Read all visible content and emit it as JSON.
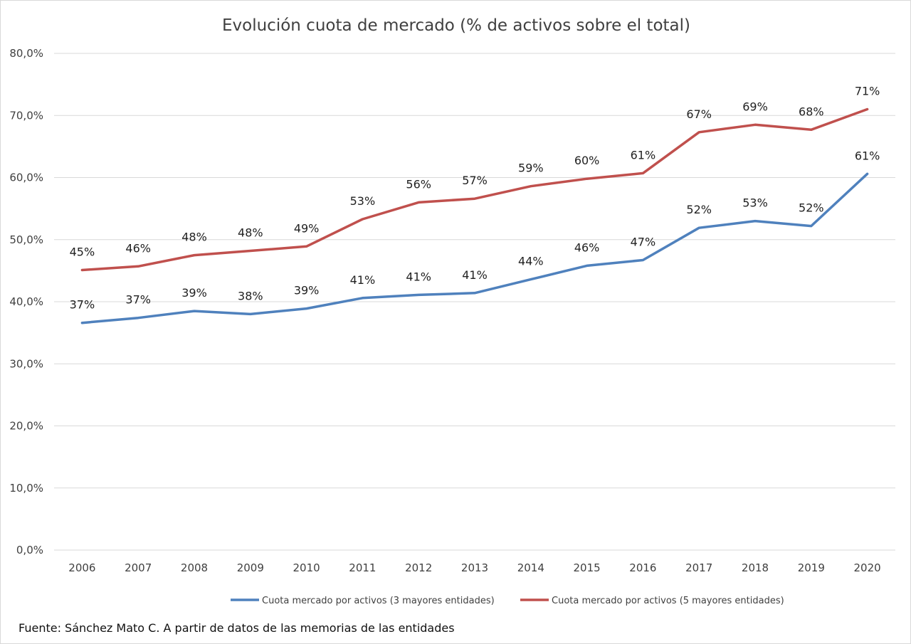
{
  "chart_data": {
    "type": "line",
    "title": "Evolución cuota de mercado (% de activos sobre el total)",
    "categories": [
      "2006",
      "2007",
      "2008",
      "2009",
      "2010",
      "2011",
      "2012",
      "2013",
      "2014",
      "2015",
      "2016",
      "2017",
      "2018",
      "2019",
      "2020"
    ],
    "ylim": [
      0,
      80
    ],
    "y_ticks": [
      0,
      10,
      20,
      30,
      40,
      50,
      60,
      70,
      80
    ],
    "y_tick_labels": [
      "0,0%",
      "10,0%",
      "20,0%",
      "30,0%",
      "40,0%",
      "50,0%",
      "60,0%",
      "70,0%",
      "80,0%"
    ],
    "grid": true,
    "legend_position": "bottom",
    "series": [
      {
        "name": "Cuota mercado por activos (3 mayores entidades)",
        "color": "#4f81bd",
        "values": [
          36.6,
          37.4,
          38.5,
          38.0,
          38.9,
          40.6,
          41.1,
          41.4,
          43.6,
          45.8,
          46.7,
          51.9,
          53.0,
          52.2,
          60.6
        ],
        "labels": [
          "37%",
          "37%",
          "39%",
          "38%",
          "39%",
          "41%",
          "41%",
          "41%",
          "44%",
          "46%",
          "47%",
          "52%",
          "53%",
          "52%",
          "61%"
        ]
      },
      {
        "name": "Cuota mercado por activos (5 mayores entidades)",
        "color": "#c0504d",
        "values": [
          45.1,
          45.7,
          47.5,
          48.2,
          48.9,
          53.3,
          56.0,
          56.6,
          58.6,
          59.8,
          60.7,
          67.3,
          68.5,
          67.7,
          71.0
        ],
        "labels": [
          "45%",
          "46%",
          "48%",
          "48%",
          "49%",
          "53%",
          "56%",
          "57%",
          "59%",
          "60%",
          "61%",
          "67%",
          "69%",
          "68%",
          "71%"
        ]
      }
    ],
    "source": "Fuente: Sánchez Mato C.  A partir de datos de las memorias de las entidades"
  }
}
